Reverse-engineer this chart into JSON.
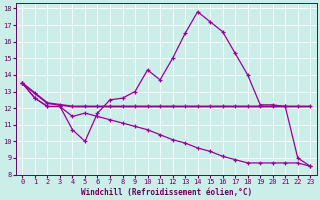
{
  "xlabel": "Windchill (Refroidissement éolien,°C)",
  "background_color": "#cceee8",
  "grid_color": "#ffffff",
  "line_color": "#990099",
  "xlim": [
    -0.5,
    23.5
  ],
  "ylim": [
    8,
    18.3
  ],
  "yticks": [
    8,
    9,
    10,
    11,
    12,
    13,
    14,
    15,
    16,
    17,
    18
  ],
  "xticks": [
    0,
    1,
    2,
    3,
    4,
    5,
    6,
    7,
    8,
    9,
    10,
    11,
    12,
    13,
    14,
    15,
    16,
    17,
    18,
    19,
    20,
    21,
    22,
    23
  ],
  "line1_x": [
    0,
    1,
    2,
    3,
    4,
    5,
    6,
    7,
    8,
    9,
    10,
    11,
    12,
    13,
    14,
    15,
    16,
    17,
    18,
    19,
    20,
    21,
    22,
    23
  ],
  "line1_y": [
    13.5,
    12.6,
    12.1,
    12.1,
    10.7,
    10.0,
    11.7,
    12.5,
    12.6,
    13.0,
    14.3,
    13.7,
    15.0,
    16.5,
    17.8,
    17.2,
    16.6,
    15.3,
    14.0,
    12.2,
    12.2,
    12.1,
    9.0,
    8.5
  ],
  "line2_x": [
    0,
    1,
    2,
    3,
    4,
    5,
    6,
    7,
    8,
    9,
    10,
    11,
    12,
    13,
    14,
    15,
    16,
    17,
    18,
    19,
    20,
    21,
    22,
    23
  ],
  "line2_y": [
    13.5,
    12.9,
    12.3,
    12.2,
    12.1,
    12.1,
    12.1,
    12.1,
    12.1,
    12.1,
    12.1,
    12.1,
    12.1,
    12.1,
    12.1,
    12.1,
    12.1,
    12.1,
    12.1,
    12.1,
    12.1,
    12.1,
    12.1,
    12.1
  ],
  "line3_x": [
    0,
    1,
    2,
    3,
    4,
    5,
    6,
    7,
    8,
    9,
    10,
    11,
    12,
    13,
    14,
    15,
    16,
    17,
    18,
    19,
    20,
    21,
    22,
    23
  ],
  "line3_y": [
    13.5,
    12.6,
    12.1,
    12.1,
    11.5,
    11.7,
    11.5,
    11.3,
    11.1,
    10.9,
    10.7,
    10.4,
    10.1,
    9.9,
    9.6,
    9.4,
    9.1,
    8.9,
    8.7,
    8.7,
    8.7,
    8.7,
    8.7,
    8.5
  ]
}
